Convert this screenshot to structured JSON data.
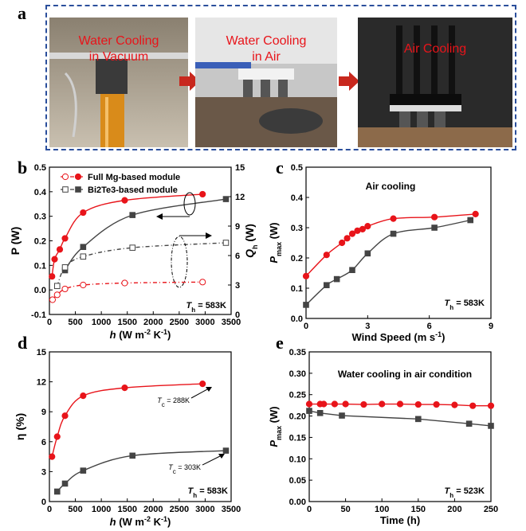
{
  "panel_letters": {
    "a": "a",
    "b": "b",
    "c": "c",
    "d": "d",
    "e": "e"
  },
  "photos": [
    {
      "label_line1": "Water Cooling",
      "label_line2": "in Vacuum"
    },
    {
      "label_line1": "Water Cooling",
      "label_line2": "in Air"
    },
    {
      "label_line1": "Air  Cooling",
      "label_line2": ""
    }
  ],
  "colors": {
    "frame": "#2b4f9c",
    "red": "#e8141a",
    "gray": "#444444",
    "arrow": "#c8281e"
  },
  "chart_data": [
    {
      "id": "b",
      "type": "line",
      "xlabel_parts": [
        "h",
        " (W m",
        "-2",
        " K",
        "-1",
        ")"
      ],
      "ylabel_left": "P (W)",
      "ylabel_right": "Q",
      "xlim": [
        0,
        3500
      ],
      "ylim_left": [
        -0.1,
        0.5
      ],
      "ylim_right": [
        0,
        15
      ],
      "xticks": [
        "0",
        "500",
        "1000",
        "1500",
        "2000",
        "2500",
        "3000",
        "3500"
      ],
      "yticks_left": [
        "-0.1",
        "0.0",
        "0.1",
        "0.2",
        "0.3",
        "0.4",
        "0.5"
      ],
      "yticks_right": [
        "0",
        "3",
        "6",
        "9",
        "12",
        "15"
      ],
      "legend": [
        "Full Mg-based module",
        "Bi2Te3-based module"
      ],
      "annotation": "Th = 583K",
      "series": [
        {
          "name": "Full Mg-based module",
          "axis": "left",
          "style": "filled-circle-red",
          "x": [
            50,
            100,
            200,
            300,
            650,
            1450,
            2950
          ],
          "y": [
            0.055,
            0.125,
            0.165,
            0.21,
            0.315,
            0.365,
            0.39
          ]
        },
        {
          "name": "Bi2Te3-based module",
          "axis": "left",
          "style": "filled-square-gray",
          "x": [
            300,
            650,
            1600,
            3400
          ],
          "y": [
            0.08,
            0.175,
            0.305,
            0.37
          ]
        },
        {
          "name": "Full Mg-based module",
          "axis": "right",
          "style": "open-circle-red",
          "x": [
            60,
            150,
            300,
            650,
            1450,
            2950
          ],
          "y": [
            1.5,
            2.0,
            2.6,
            3.0,
            3.2,
            3.3
          ]
        },
        {
          "name": "Bi2Te3-based module",
          "axis": "right",
          "style": "open-square-gray",
          "x": [
            150,
            300,
            650,
            1600,
            3400
          ],
          "y": [
            2.9,
            4.8,
            5.9,
            6.8,
            7.3
          ]
        }
      ]
    },
    {
      "id": "c",
      "type": "line",
      "title": "Air cooling",
      "xlabel": "Wind Speed (m s",
      "xlabel_sup": "-1",
      "xlabel_end": ")",
      "ylabel": "P",
      "ylabel_sub": "max",
      "ylabel_unit": " (W)",
      "xlim": [
        0,
        9
      ],
      "ylim": [
        0,
        0.5
      ],
      "xticks": [
        "0",
        "3",
        "6",
        "9"
      ],
      "yticks": [
        "0.0",
        "0.1",
        "0.2",
        "0.3",
        "0.4",
        "0.5"
      ],
      "annotation": "Th = 583K",
      "series": [
        {
          "style": "filled-circle-red",
          "x": [
            0,
            1,
            1.75,
            2,
            2.25,
            2.5,
            2.75,
            3,
            4.25,
            6.25,
            8.25
          ],
          "y": [
            0.14,
            0.21,
            0.25,
            0.265,
            0.28,
            0.29,
            0.295,
            0.305,
            0.33,
            0.335,
            0.345
          ]
        },
        {
          "style": "filled-square-gray",
          "x": [
            0,
            1,
            1.5,
            2.25,
            3,
            4.25,
            6.25,
            8
          ],
          "y": [
            0.045,
            0.11,
            0.13,
            0.16,
            0.215,
            0.28,
            0.3,
            0.325
          ]
        }
      ]
    },
    {
      "id": "d",
      "type": "line",
      "xlabel_parts": [
        "h",
        " (W m",
        "-2",
        " K",
        "-1",
        ")"
      ],
      "ylabel": "η (%)",
      "xlim": [
        0,
        3500
      ],
      "ylim": [
        0,
        15
      ],
      "xticks": [
        "0",
        "500",
        "1000",
        "1500",
        "2000",
        "2500",
        "3000",
        "3500"
      ],
      "yticks": [
        "0",
        "3",
        "6",
        "9",
        "12",
        "15"
      ],
      "annotation": "Th = 583K",
      "note_red": "Tc = 288K",
      "note_gray": "Tc = 303K",
      "series": [
        {
          "style": "filled-circle-red",
          "x": [
            50,
            150,
            300,
            650,
            1450,
            2950
          ],
          "y": [
            4.5,
            6.5,
            8.6,
            10.6,
            11.4,
            11.8
          ]
        },
        {
          "style": "filled-square-gray",
          "x": [
            150,
            300,
            650,
            1600,
            3400
          ],
          "y": [
            1.0,
            1.8,
            3.1,
            4.6,
            5.1
          ]
        }
      ]
    },
    {
      "id": "e",
      "type": "line",
      "title": "Water cooling in air condition",
      "xlabel": "Time (h)",
      "ylabel": "P",
      "ylabel_sub": "max",
      "ylabel_unit": " (W)",
      "xlim": [
        0,
        250
      ],
      "ylim": [
        0,
        0.35
      ],
      "xticks": [
        "0",
        "50",
        "100",
        "150",
        "200",
        "250"
      ],
      "yticks": [
        "0.00",
        "0.05",
        "0.10",
        "0.15",
        "0.20",
        "0.25",
        "0.30",
        "0.35"
      ],
      "annotation": "Th = 523K",
      "series": [
        {
          "style": "filled-circle-red",
          "x": [
            0,
            15,
            20,
            35,
            50,
            75,
            100,
            125,
            150,
            175,
            200,
            225,
            250
          ],
          "y": [
            0.228,
            0.228,
            0.228,
            0.228,
            0.228,
            0.227,
            0.228,
            0.228,
            0.227,
            0.227,
            0.226,
            0.224,
            0.224
          ]
        },
        {
          "style": "filled-square-gray",
          "x": [
            0,
            15,
            45,
            150,
            220,
            250
          ],
          "y": [
            0.212,
            0.207,
            0.201,
            0.193,
            0.182,
            0.177
          ]
        }
      ]
    }
  ]
}
